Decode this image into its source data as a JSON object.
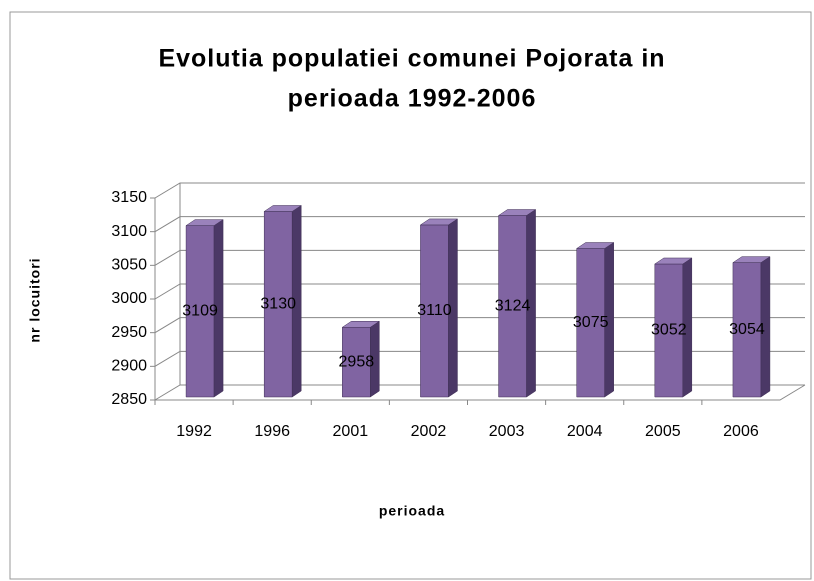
{
  "chart_data": {
    "type": "bar3d",
    "title": "Evolutia populatiei comunei Pojorata in",
    "subtitle": "perioada 1992-2006",
    "x_label": "perioada",
    "y_label": "nr locuitori",
    "categories": [
      "1992",
      "1996",
      "2001",
      "2002",
      "2003",
      "2004",
      "2005",
      "2006"
    ],
    "values": [
      3109,
      3130,
      2958,
      3110,
      3124,
      3075,
      3052,
      3054
    ],
    "color": "#8064a2",
    "ylim": [
      2850,
      3150
    ],
    "yticks": [
      2850,
      2900,
      2950,
      3000,
      3050,
      3100,
      3150
    ],
    "grid": true
  }
}
